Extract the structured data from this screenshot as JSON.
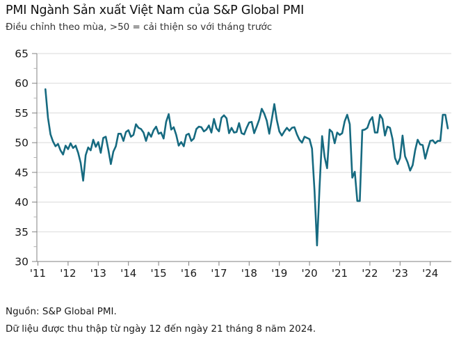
{
  "header": {
    "title": "PMI Ngành Sản xuất Việt Nam của S&P Global PMI",
    "subtitle": "Điều chỉnh theo mùa, >50 = cải thiện so với tháng trước"
  },
  "footer": {
    "source": "Nguồn: S&P Global PMI.",
    "collection_note": "Dữ liệu được thu thập từ ngày 12 đến ngày 21 tháng 8 năm 2024."
  },
  "chart_data": {
    "type": "line",
    "title": "PMI Ngành Sản xuất Việt Nam của S&P Global PMI",
    "subtitle": "Điều chỉnh theo mùa, >50 = cải thiện so với tháng trước",
    "xlabel": "",
    "ylabel": "",
    "ylim": [
      30,
      65
    ],
    "y_ticks": [
      30,
      35,
      40,
      45,
      50,
      55,
      60,
      65
    ],
    "y_minor_tick_step": 2.5,
    "x_tick_labels": [
      "'11",
      "'12",
      "'13",
      "'14",
      "'15",
      "'16",
      "'17",
      "'18",
      "'19",
      "'20",
      "'21",
      "'22",
      "'23",
      "'24"
    ],
    "grid": true,
    "legend": "none",
    "line_color": "#166a80",
    "axis_color": "#808080",
    "grid_color": "#d9d9d9",
    "minor_tick_color": "#b3b3b3",
    "label_color": "#1a1a1a",
    "series": [
      {
        "name": "PMI sản xuất Việt Nam",
        "frequency": "monthly",
        "start": "2011-04",
        "end": "2024-08",
        "values": [
          59.0,
          54.2,
          51.4,
          50.2,
          49.4,
          49.8,
          48.7,
          48.0,
          49.5,
          48.9,
          49.9,
          49.1,
          49.5,
          48.3,
          46.6,
          43.6,
          47.9,
          49.2,
          48.7,
          50.5,
          49.3,
          50.1,
          48.3,
          50.8,
          51.0,
          48.8,
          46.4,
          48.5,
          49.4,
          51.5,
          51.5,
          50.3,
          51.8,
          52.1,
          51.0,
          51.3,
          53.1,
          52.5,
          52.3,
          51.7,
          50.3,
          51.7,
          51.0,
          52.1,
          52.7,
          51.5,
          51.7,
          50.7,
          53.5,
          54.8,
          52.2,
          52.6,
          51.3,
          49.5,
          50.1,
          49.4,
          51.3,
          51.5,
          50.3,
          50.7,
          52.3,
          52.7,
          52.6,
          51.9,
          52.2,
          52.9,
          51.7,
          54.0,
          52.4,
          51.9,
          54.2,
          54.6,
          54.1,
          51.6,
          52.5,
          51.7,
          51.8,
          53.3,
          51.6,
          51.4,
          52.5,
          53.4,
          53.5,
          51.6,
          52.7,
          53.9,
          55.7,
          54.9,
          53.7,
          51.5,
          53.9,
          56.5,
          53.8,
          51.9,
          51.2,
          51.9,
          52.5,
          52.0,
          52.5,
          52.6,
          51.4,
          50.5,
          50.0,
          51.0,
          50.8,
          50.6,
          49.0,
          41.9,
          32.7,
          42.7,
          51.1,
          47.6,
          45.7,
          52.2,
          51.8,
          49.9,
          51.7,
          51.3,
          51.6,
          53.6,
          54.7,
          53.1,
          44.1,
          45.1,
          40.2,
          40.2,
          52.1,
          52.2,
          52.5,
          53.7,
          54.3,
          51.7,
          51.7,
          54.7,
          54.0,
          51.2,
          52.7,
          52.5,
          50.6,
          47.4,
          46.4,
          47.4,
          51.2,
          47.7,
          46.7,
          45.3,
          46.2,
          48.7,
          50.5,
          49.7,
          49.6,
          47.3,
          48.9,
          50.3,
          50.4,
          49.9,
          50.3,
          50.3,
          54.7,
          54.7,
          52.4
        ]
      }
    ]
  }
}
